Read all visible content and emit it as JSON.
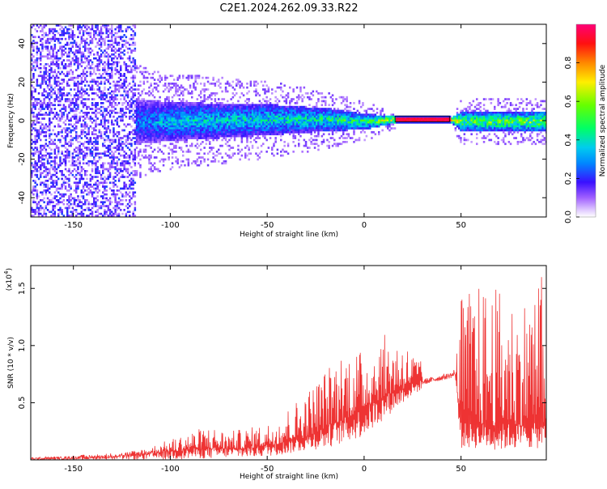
{
  "figure_title": "C2E1.2024.262.09.33.R22",
  "chart_data": [
    {
      "type": "heatmap",
      "title": "C2E1.2024.262.09.33.R22",
      "xlabel": "Height of straight line (km)",
      "ylabel": "Frequency (Hz)",
      "xlim": [
        -172,
        94
      ],
      "ylim": [
        -50,
        50
      ],
      "xticks": [
        -150,
        -100,
        -50,
        0,
        50
      ],
      "yticks": [
        -40,
        -20,
        0,
        20,
        40
      ],
      "colorbar": {
        "label": "Normalized spectral amplitude",
        "range": [
          0.0,
          1.0
        ],
        "ticks": [
          0.0,
          0.2,
          0.4,
          0.6,
          0.8
        ],
        "colormap": [
          "#ffffff",
          "#cc99ff",
          "#8a2be2",
          "#2e00ff",
          "#0066ff",
          "#00ccff",
          "#00ff66",
          "#66ff00",
          "#ffff00",
          "#ff9900",
          "#ff0000",
          "#ff0066"
        ]
      },
      "series": [
        {
          "description_points": [
            {
              "x": -170,
              "center_freq": 0,
              "half_width": 50,
              "peak_amp": 0.2
            },
            {
              "x": -140,
              "center_freq": 0,
              "half_width": 50,
              "peak_amp": 0.22
            },
            {
              "x": -120,
              "center_freq": 0,
              "half_width": 12,
              "peak_amp": 0.3
            },
            {
              "x": -100,
              "center_freq": 0,
              "half_width": 10,
              "peak_amp": 0.4
            },
            {
              "x": -50,
              "center_freq": 1,
              "half_width": 8,
              "peak_amp": 0.45
            },
            {
              "x": -20,
              "center_freq": 1,
              "half_width": 6,
              "peak_amp": 0.5
            },
            {
              "x": 0,
              "center_freq": 0,
              "half_width": 4,
              "peak_amp": 0.55
            },
            {
              "x": 15,
              "center_freq": 1,
              "half_width": 2,
              "peak_amp": 0.8
            },
            {
              "x": 30,
              "center_freq": 1,
              "half_width": 1,
              "peak_amp": 0.95
            },
            {
              "x": 44,
              "center_freq": 1,
              "half_width": 1,
              "peak_amp": 0.95
            },
            {
              "x": 50,
              "center_freq": 0,
              "half_width": 5,
              "peak_amp": 0.6
            },
            {
              "x": 94,
              "center_freq": 0,
              "half_width": 5,
              "peak_amp": 0.65
            }
          ]
        }
      ],
      "grid": false,
      "legend": "none"
    },
    {
      "type": "line",
      "xlabel": "Height of straight line (km)",
      "ylabel": "SNR (10 * v/v)",
      "y_multiplier": "(x10^4)",
      "xlim": [
        -172,
        94
      ],
      "ylim": [
        0,
        1.7
      ],
      "xticks": [
        -150,
        -100,
        -50,
        0,
        50
      ],
      "yticks": [
        0.5,
        1.0,
        1.5
      ],
      "ytick_labels": [
        "0.5",
        "1.0",
        "1.5"
      ],
      "color": "#ee3333",
      "envelope": {
        "x": [
          -172,
          -150,
          -130,
          -120,
          -110,
          -100,
          -90,
          -80,
          -70,
          -60,
          -50,
          -40,
          -30,
          -20,
          -10,
          0,
          10,
          20,
          30,
          40,
          45,
          47,
          50,
          60,
          70,
          80,
          94
        ],
        "baseline": [
          0.0,
          0.01,
          0.02,
          0.03,
          0.05,
          0.07,
          0.08,
          0.09,
          0.09,
          0.1,
          0.12,
          0.15,
          0.2,
          0.28,
          0.35,
          0.45,
          0.55,
          0.62,
          0.68,
          0.72,
          0.74,
          0.75,
          0.3,
          0.3,
          0.3,
          0.3,
          0.3
        ],
        "upper": [
          0.02,
          0.04,
          0.06,
          0.08,
          0.12,
          0.18,
          0.25,
          0.3,
          0.25,
          0.28,
          0.32,
          0.45,
          0.6,
          0.8,
          1.0,
          0.95,
          1.1,
          1.05,
          0.85,
          0.78,
          0.78,
          0.8,
          1.45,
          1.55,
          1.5,
          1.4,
          1.7
        ],
        "lower": [
          0.0,
          0.0,
          0.0,
          0.0,
          0.0,
          0.0,
          0.01,
          0.01,
          0.02,
          0.02,
          0.03,
          0.05,
          0.08,
          0.1,
          0.15,
          0.2,
          0.35,
          0.5,
          0.62,
          0.7,
          0.72,
          0.72,
          0.1,
          0.1,
          0.08,
          0.1,
          0.1
        ]
      },
      "grid": false,
      "legend": "none"
    }
  ]
}
